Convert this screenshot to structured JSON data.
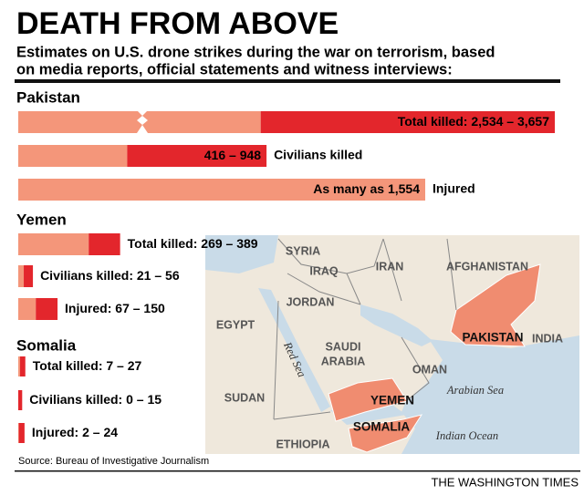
{
  "header": {
    "title": "DEATH FROM ABOVE",
    "subtitle_lines": [
      "Estimates on U.S. drone strikes during the war on terrorism, based",
      "on media reports, official statements and witness interviews:"
    ]
  },
  "chart_data": [
    {
      "type": "range-bar",
      "title": "Pakistan",
      "categories": [
        "Total killed:",
        "Civilians killed",
        "Injured"
      ],
      "values": [
        [
          2534,
          3657
        ],
        [
          416,
          948
        ],
        [
          1554
        ]
      ],
      "value_labels": [
        "2,534 – 3,657",
        "416 – 948",
        "As many as 1,554"
      ],
      "colors": [
        "#f4967a",
        "#e3262c"
      ]
    },
    {
      "type": "range-bar",
      "title": "Yemen",
      "categories": [
        "Total killed:",
        "Civilians killed:",
        "Injured:"
      ],
      "values": [
        [
          269,
          389
        ],
        [
          21,
          56
        ],
        [
          67,
          150
        ]
      ],
      "value_labels": [
        "269 – 389",
        "21 – 56",
        "67 – 150"
      ],
      "colors": [
        "#f4967a",
        "#e3262c"
      ]
    },
    {
      "type": "range-bar",
      "title": "Somalia",
      "categories": [
        "Total killed:",
        "Civilians killed:",
        "Injured:"
      ],
      "values": [
        [
          7,
          27
        ],
        [
          0,
          15
        ],
        [
          2,
          24
        ]
      ],
      "value_labels": [
        "7 – 27",
        "0 – 15",
        "2 – 24"
      ],
      "colors": [
        "#f4967a",
        "#e3262c"
      ]
    }
  ],
  "map": {
    "labels": [
      "SYRIA",
      "IRAQ",
      "IRAN",
      "AFGHANISTAN",
      "JORDAN",
      "EGYPT",
      "SAUDI",
      "ARABIA",
      "OMAN",
      "INDIA",
      "SUDAN",
      "ETHIOPIA",
      "PAKISTAN",
      "YEMEN",
      "SOMALIA",
      "Red Sea",
      "Arabian Sea",
      "Indian Ocean"
    ]
  },
  "source": "Source: Bureau of Investigative Journalism",
  "credit": "THE WASHINGTON TIMES"
}
